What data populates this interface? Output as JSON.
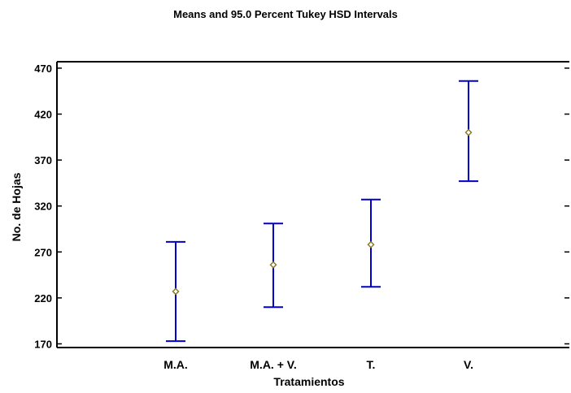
{
  "chart_data": {
    "type": "scatter",
    "title": "Means and 95.0 Percent Tukey HSD Intervals",
    "xlabel": "Tratamientos",
    "ylabel": "No. de Hojas",
    "categories": [
      "M.A.",
      "M.A. + V.",
      "T.",
      "V."
    ],
    "series": [
      {
        "means": [
          227,
          256,
          278,
          400
        ],
        "lower": [
          173,
          210,
          232,
          347
        ],
        "upper": [
          281,
          301,
          327,
          456
        ]
      }
    ],
    "ylim": [
      166,
      477
    ],
    "yticks": [
      170,
      220,
      270,
      320,
      370,
      420,
      470
    ],
    "grid": false,
    "colors": {
      "interval": "#0000cc",
      "mean": "#8b7d2b"
    }
  }
}
